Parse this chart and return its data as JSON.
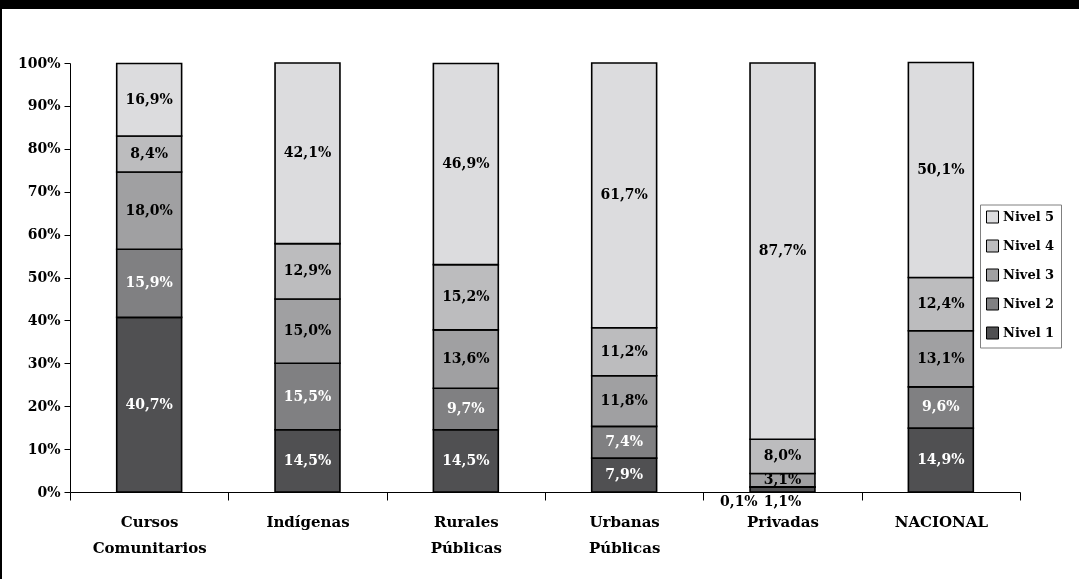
{
  "chart_data": {
    "type": "bar",
    "stacked": true,
    "categories": [
      "Cursos Comunitarios",
      "Indígenas",
      "Rurales Públicas",
      "Urbanas Públicas",
      "Privadas",
      "NACIONAL"
    ],
    "series": [
      {
        "name": "Nivel 1",
        "color": "#505052",
        "values": [
          40.7,
          14.5,
          14.5,
          7.9,
          1.1,
          14.9
        ],
        "value_labels": [
          "40,7%",
          "14,5%",
          "14,5%",
          "7,9%",
          "1,1%",
          "14,9%"
        ]
      },
      {
        "name": "Nivel 2",
        "color": "#808082",
        "values": [
          15.9,
          15.5,
          9.7,
          7.4,
          0.1,
          9.6
        ],
        "value_labels": [
          "15,9%",
          "15,5%",
          "9,7%",
          "7,4%",
          "0,1%",
          "9,6%"
        ]
      },
      {
        "name": "Nivel 3",
        "color": "#a0a0a2",
        "values": [
          18.0,
          15.0,
          13.6,
          11.8,
          3.1,
          13.1
        ],
        "value_labels": [
          "18,0%",
          "15,0%",
          "13,6%",
          "11,8%",
          "3,1%",
          "13,1%"
        ]
      },
      {
        "name": "Nivel 4",
        "color": "#bcbcbe",
        "values": [
          8.4,
          12.9,
          15.2,
          11.2,
          8.0,
          12.4
        ],
        "value_labels": [
          "8,4%",
          "12,9%",
          "15,2%",
          "11,2%",
          "8,0%",
          "12,4%"
        ]
      },
      {
        "name": "Nivel 5",
        "color": "#dcdcde",
        "values": [
          16.9,
          42.1,
          46.9,
          61.7,
          87.7,
          50.1
        ],
        "value_labels": [
          "16,9%",
          "42,1%",
          "46,9%",
          "61,7%",
          "87,7%",
          "50,1%"
        ]
      }
    ],
    "ylim": [
      0,
      100
    ],
    "yticks": [
      {
        "value": 0,
        "label": "0%"
      },
      {
        "value": 10,
        "label": "10%"
      },
      {
        "value": 20,
        "label": "20%"
      },
      {
        "value": 30,
        "label": "30%"
      },
      {
        "value": 40,
        "label": "40%"
      },
      {
        "value": 50,
        "label": "50%"
      },
      {
        "value": 60,
        "label": "60%"
      },
      {
        "value": 70,
        "label": "70%"
      },
      {
        "value": 80,
        "label": "80%"
      },
      {
        "value": 90,
        "label": "90%"
      },
      {
        "value": 100,
        "label": "100%"
      }
    ],
    "legend": "right"
  }
}
